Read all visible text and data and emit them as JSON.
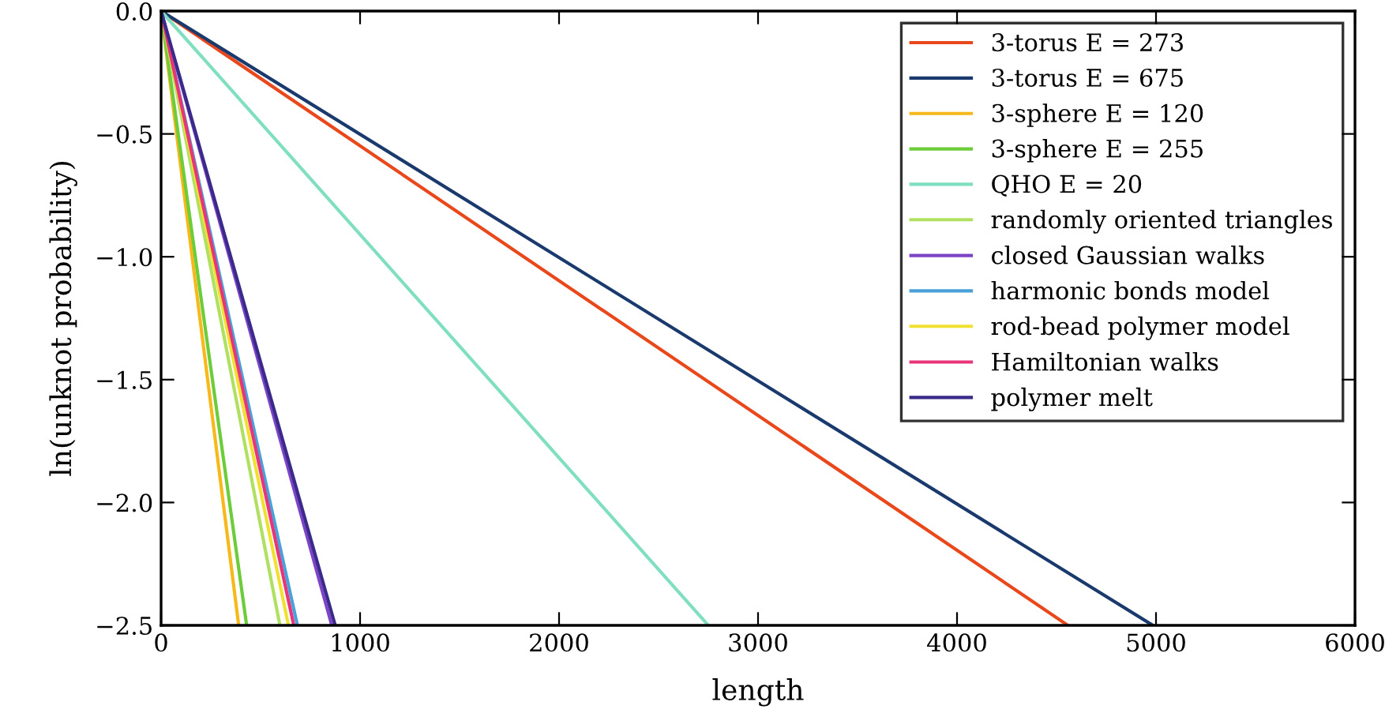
{
  "chart_data": {
    "type": "line",
    "xlabel": "length",
    "ylabel": "ln(unknot probability)",
    "xlim": [
      0,
      6000
    ],
    "ylim": [
      -2.5,
      0.0
    ],
    "xticks": [
      0,
      1000,
      2000,
      3000,
      4000,
      5000,
      6000
    ],
    "yticks": [
      {
        "value": -2.5,
        "label": "−2.5"
      },
      {
        "value": -2.0,
        "label": "−2.0"
      },
      {
        "value": -1.5,
        "label": "−1.5"
      },
      {
        "value": -1.0,
        "label": "−1.0"
      },
      {
        "value": -0.5,
        "label": "−0.5"
      },
      {
        "value": 0.0,
        "label": "0.0"
      }
    ],
    "grid": false,
    "legend": "top right",
    "marker": "none",
    "line_style": "solid",
    "series": [
      {
        "name": "3-torus E = 273",
        "color": "#e8481c",
        "x": [
          0,
          4557
        ],
        "values": [
          0,
          -2.5
        ]
      },
      {
        "name": "3-torus E = 675",
        "color": "#1a3a6e",
        "x": [
          0,
          4984
        ],
        "values": [
          0,
          -2.5
        ]
      },
      {
        "name": "3-sphere E = 120",
        "color": "#f7b81a",
        "x": [
          0,
          390
        ],
        "values": [
          0,
          -2.5
        ]
      },
      {
        "name": "3-sphere E = 255",
        "color": "#6ccc3a",
        "x": [
          0,
          430
        ],
        "values": [
          0,
          -2.5
        ]
      },
      {
        "name": "QHO E = 20",
        "color": "#7fdfc0",
        "x": [
          0,
          2750
        ],
        "values": [
          0,
          -2.5
        ]
      },
      {
        "name": "randomly oriented triangles",
        "color": "#b0e060",
        "x": [
          0,
          597
        ],
        "values": [
          0,
          -2.5
        ]
      },
      {
        "name": "closed Gaussian walks",
        "color": "#7d44c8",
        "x": [
          0,
          858
        ],
        "values": [
          0,
          -2.5
        ]
      },
      {
        "name": "harmonic bonds model",
        "color": "#4aa0d8",
        "x": [
          0,
          685
        ],
        "values": [
          0,
          -2.5
        ]
      },
      {
        "name": "rod-bead polymer model",
        "color": "#f0e030",
        "x": [
          0,
          640
        ],
        "values": [
          0,
          -2.5
        ]
      },
      {
        "name": "Hamiltonian walks",
        "color": "#e8357a",
        "x": [
          0,
          667
        ],
        "values": [
          0,
          -2.5
        ]
      },
      {
        "name": "polymer melt",
        "color": "#3a2a8a",
        "x": [
          0,
          875
        ],
        "values": [
          0,
          -2.5
        ]
      }
    ]
  }
}
